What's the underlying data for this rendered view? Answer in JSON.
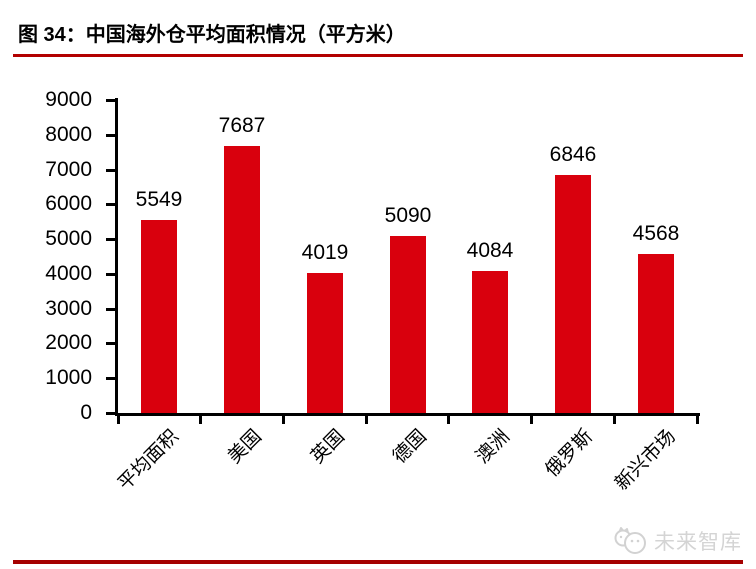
{
  "title": {
    "text": "图 34：中国海外仓平均面积情况（平方米）"
  },
  "chart_data": {
    "type": "bar",
    "title": "图 34：中国海外仓平均面积情况（平方米）",
    "categories": [
      "平均面积",
      "美国",
      "英国",
      "德国",
      "澳洲",
      "俄罗斯",
      "新兴市场"
    ],
    "values": [
      5549,
      7687,
      4019,
      5090,
      4084,
      6846,
      4568
    ],
    "value_labels": [
      "5549",
      "7687",
      "4019",
      "5090",
      "4084",
      "6846",
      "4568"
    ],
    "xlabel": "",
    "ylabel": "",
    "ylim": [
      0,
      9000
    ],
    "yticks": [
      0,
      1000,
      2000,
      3000,
      4000,
      5000,
      6000,
      7000,
      8000,
      9000
    ],
    "grid": false,
    "legend": "none",
    "bar_color": "#d9000d"
  },
  "watermark": {
    "text": "未来智库"
  },
  "colors": {
    "bar": "#d9000d",
    "title_rule": "#b20000",
    "footer_rule": "#a50000",
    "axis": "#000000",
    "text": "#000000",
    "watermark": "#d4d4d4"
  }
}
